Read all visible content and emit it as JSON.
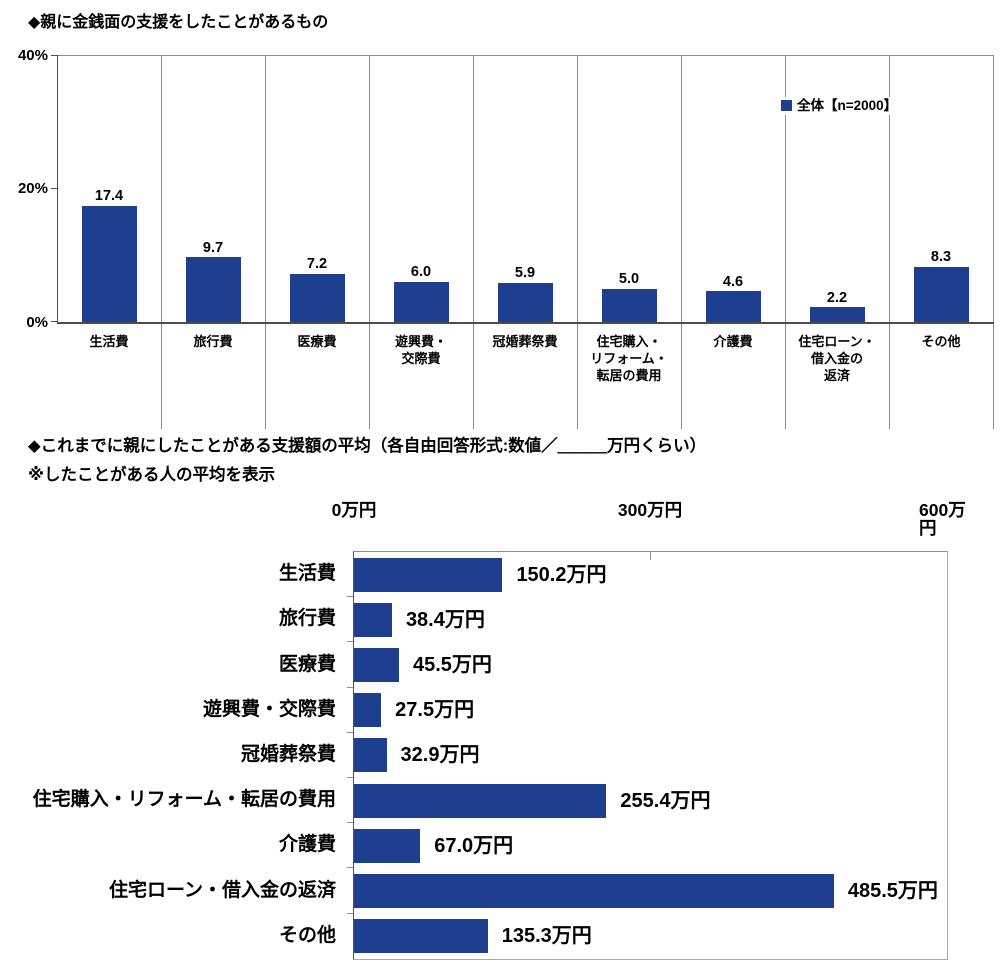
{
  "colors": {
    "bar": "#1E3F8F",
    "grid": "#8C8C8C",
    "axis": "#4D4D4D",
    "text": "#000000"
  },
  "chart_data": [
    {
      "type": "bar",
      "title": "◆親に金銭面の支援をしたことがあるもの",
      "legend_label": "全体【n=2000】",
      "categories": [
        "生活費",
        "旅行費",
        "医療費",
        "遊興費・交際費",
        "冠婚葬祭費",
        "住宅購入・リフォーム・転居の費用",
        "介護費",
        "住宅ローン・借入金の返済",
        "その他"
      ],
      "category_display": [
        "生活費",
        "旅行費",
        "医療費",
        "遊興費・\n交際費",
        "冠婚葬祭費",
        "住宅購入・\nリフォーム・\n転居の費用",
        "介護費",
        "住宅ローン・\n借入金の\n返済",
        "その他"
      ],
      "values": [
        17.4,
        9.7,
        7.2,
        6.0,
        5.9,
        5.0,
        4.6,
        2.2,
        8.3
      ],
      "value_labels": [
        "17.4",
        "9.7",
        "7.2",
        "6.0",
        "5.9",
        "5.0",
        "4.6",
        "2.2",
        "8.3"
      ],
      "ylabel": "%",
      "ylim": [
        0,
        40
      ],
      "y_tick_labels": [
        "40%",
        "20%",
        "0%"
      ],
      "grid": "vertical-category-separators",
      "legend_position": "inside-top-right"
    },
    {
      "type": "bar-horizontal",
      "title": "◆これまでに親にしたことがある支援額の平均（各自由回答形式:数値／＿＿＿万円くらい）",
      "subtitle": "※したことがある人の平均を表示",
      "categories": [
        "生活費",
        "旅行費",
        "医療費",
        "遊興費・交際費",
        "冠婚葬祭費",
        "住宅購入・リフォーム・転居の費用",
        "介護費",
        "住宅ローン・借入金の返済",
        "その他"
      ],
      "values": [
        150.2,
        38.4,
        45.5,
        27.5,
        32.9,
        255.4,
        67.0,
        485.5,
        135.3
      ],
      "value_labels": [
        "150.2万円",
        "38.4万円",
        "45.5万円",
        "27.5万円",
        "32.9万円",
        "255.4万円",
        "67.0万円",
        "485.5万円",
        "135.3万円"
      ],
      "xlim": [
        0,
        600
      ],
      "x_tick_labels": [
        "0万円",
        "300万円",
        "600万円"
      ],
      "unit": "万円",
      "legend_position": "none"
    }
  ]
}
